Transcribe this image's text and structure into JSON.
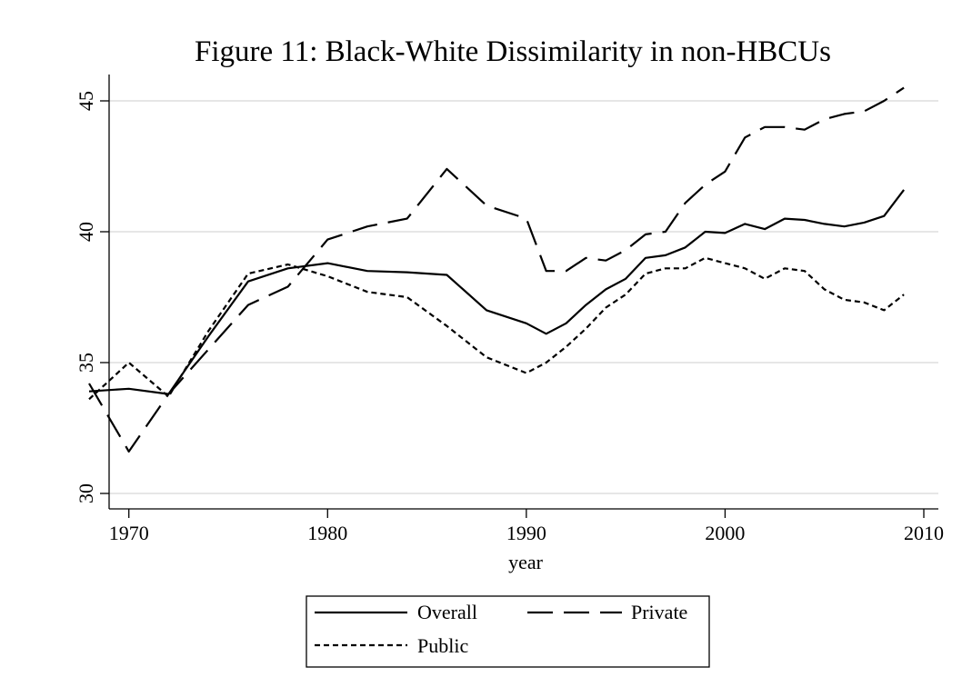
{
  "chart_data": {
    "type": "line",
    "title": "Figure 11: Black-White Dissimilarity in non-HBCUs",
    "xlabel": "year",
    "ylabel": "",
    "xlim": [
      1968,
      2010
    ],
    "ylim": [
      30,
      46
    ],
    "xticks": [
      1970,
      1980,
      1990,
      2000,
      2010
    ],
    "yticks": [
      30,
      35,
      40,
      45
    ],
    "grid": "horizontal",
    "legend_position": "bottom",
    "series": [
      {
        "name": "Overall",
        "dash": "solid",
        "x": [
          1968,
          1970,
          1972,
          1974,
          1976,
          1978,
          1980,
          1982,
          1984,
          1986,
          1988,
          1990,
          1991,
          1992,
          1993,
          1994,
          1995,
          1996,
          1997,
          1998,
          1999,
          2000,
          2001,
          2002,
          2003,
          2004,
          2005,
          2006,
          2007,
          2008,
          2009
        ],
        "values": [
          33.9,
          34.0,
          33.8,
          36.0,
          38.1,
          38.6,
          38.8,
          38.5,
          38.45,
          38.35,
          37.0,
          36.5,
          36.1,
          36.5,
          37.2,
          37.8,
          38.2,
          39.0,
          39.1,
          39.4,
          40.0,
          39.95,
          40.3,
          40.1,
          40.5,
          40.45,
          40.3,
          40.2,
          40.35,
          40.6,
          41.6
        ]
      },
      {
        "name": "Private",
        "dash": "long-dash",
        "x": [
          1968,
          1970,
          1972,
          1974,
          1976,
          1978,
          1980,
          1982,
          1984,
          1986,
          1988,
          1990,
          1991,
          1992,
          1993,
          1994,
          1995,
          1996,
          1997,
          1998,
          1999,
          2000,
          2001,
          2002,
          2003,
          2004,
          2005,
          2006,
          2007,
          2008,
          2009
        ],
        "values": [
          34.2,
          31.6,
          33.8,
          35.5,
          37.2,
          37.9,
          39.7,
          40.2,
          40.5,
          42.4,
          41.0,
          40.5,
          38.5,
          38.5,
          39.0,
          38.9,
          39.3,
          39.9,
          40.0,
          41.1,
          41.8,
          42.3,
          43.6,
          44.0,
          44.0,
          43.9,
          44.3,
          44.5,
          44.6,
          45.0,
          45.5
        ]
      },
      {
        "name": "Public",
        "dash": "short-dash",
        "x": [
          1968,
          1970,
          1972,
          1974,
          1976,
          1978,
          1980,
          1982,
          1984,
          1986,
          1988,
          1990,
          1991,
          1992,
          1993,
          1994,
          1995,
          1996,
          1997,
          1998,
          1999,
          2000,
          2001,
          2002,
          2003,
          2004,
          2005,
          2006,
          2007,
          2008,
          2009
        ],
        "values": [
          33.6,
          35.0,
          33.7,
          36.2,
          38.4,
          38.75,
          38.3,
          37.7,
          37.5,
          36.4,
          35.2,
          34.6,
          35.0,
          35.6,
          36.3,
          37.1,
          37.6,
          38.4,
          38.6,
          38.6,
          39.0,
          38.8,
          38.6,
          38.2,
          38.6,
          38.5,
          37.8,
          37.4,
          37.3,
          37.0,
          37.6
        ]
      }
    ],
    "legend": {
      "items": [
        "Overall",
        "Private",
        "Public"
      ]
    }
  }
}
